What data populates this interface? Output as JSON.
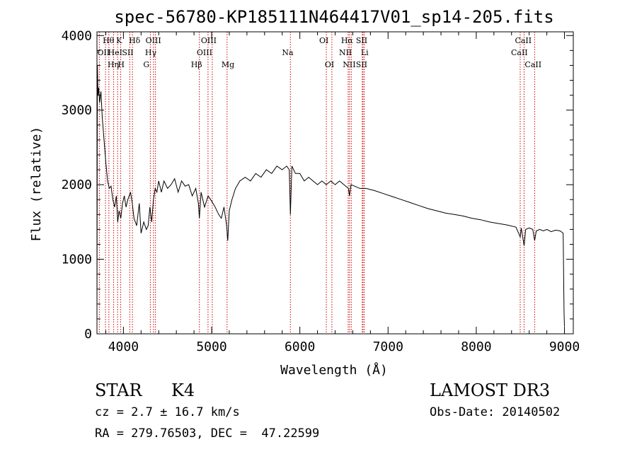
{
  "chart_data": {
    "type": "line",
    "title": "spec-56780-KP185111N464417V01_sp14-205.fits",
    "xlabel": "Wavelength (Å)",
    "ylabel": "Flux (relative)",
    "xlim": [
      3700,
      9100
    ],
    "ylim": [
      0,
      4050
    ],
    "xticks": [
      4000,
      5000,
      6000,
      7000,
      8000,
      9000
    ],
    "xtick_labels": [
      "4000",
      "5000",
      "6000",
      "7000",
      "8000",
      "9000"
    ],
    "yticks": [
      0,
      1000,
      2000,
      3000,
      4000
    ],
    "ytick_labels": [
      "0",
      "1000",
      "2000",
      "3000",
      "4000"
    ],
    "grid": false,
    "series": [
      {
        "name": "spectrum",
        "x": [
          3700,
          3705,
          3712,
          3720,
          3730,
          3745,
          3760,
          3780,
          3800,
          3820,
          3840,
          3860,
          3880,
          3900,
          3920,
          3935,
          3950,
          3970,
          3990,
          4010,
          4030,
          4050,
          4080,
          4100,
          4120,
          4150,
          4180,
          4200,
          4230,
          4260,
          4280,
          4300,
          4320,
          4340,
          4360,
          4380,
          4400,
          4430,
          4460,
          4500,
          4540,
          4580,
          4620,
          4660,
          4700,
          4740,
          4780,
          4820,
          4850,
          4861,
          4880,
          4920,
          4960,
          5000,
          5040,
          5080,
          5110,
          5140,
          5170,
          5183,
          5200,
          5230,
          5270,
          5320,
          5380,
          5440,
          5500,
          5560,
          5620,
          5680,
          5740,
          5800,
          5850,
          5880,
          5893,
          5910,
          5950,
          6000,
          6050,
          6100,
          6150,
          6200,
          6250,
          6300,
          6350,
          6400,
          6450,
          6500,
          6550,
          6563,
          6580,
          6620,
          6680,
          6750,
          6850,
          6950,
          7050,
          7150,
          7250,
          7350,
          7450,
          7550,
          7650,
          7750,
          7850,
          7950,
          8050,
          8150,
          8250,
          8350,
          8450,
          8498,
          8510,
          8542,
          8560,
          8600,
          8640,
          8662,
          8680,
          8720,
          8760,
          8800,
          8850,
          8900,
          8950,
          8985,
          8995,
          9000
        ],
        "y": [
          200,
          3600,
          3200,
          3300,
          3100,
          3250,
          2900,
          2600,
          2300,
          2050,
          1950,
          1980,
          1800,
          1700,
          1850,
          1500,
          1650,
          1550,
          1750,
          1850,
          1700,
          1800,
          1900,
          1750,
          1550,
          1450,
          1750,
          1350,
          1500,
          1400,
          1450,
          1700,
          1500,
          1800,
          1950,
          1900,
          2050,
          1900,
          2050,
          1950,
          2000,
          2080,
          1900,
          2050,
          1980,
          2000,
          1850,
          1950,
          1750,
          1550,
          1900,
          1700,
          1850,
          1780,
          1700,
          1600,
          1550,
          1700,
          1450,
          1250,
          1650,
          1800,
          1950,
          2050,
          2100,
          2050,
          2150,
          2100,
          2200,
          2150,
          2250,
          2200,
          2250,
          2200,
          1600,
          2250,
          2150,
          2150,
          2050,
          2100,
          2050,
          2000,
          2050,
          2000,
          2050,
          2000,
          2050,
          2000,
          1950,
          1850,
          2000,
          1980,
          1950,
          1950,
          1920,
          1880,
          1840,
          1800,
          1760,
          1720,
          1680,
          1650,
          1620,
          1600,
          1580,
          1550,
          1530,
          1500,
          1480,
          1460,
          1430,
          1300,
          1420,
          1180,
          1400,
          1420,
          1400,
          1250,
          1380,
          1400,
          1380,
          1400,
          1370,
          1390,
          1380,
          1350,
          300,
          100
        ]
      }
    ],
    "lines": [
      {
        "name": "OII",
        "x": 3727,
        "row": 1,
        "dx": -3
      },
      {
        "name": "Hθ",
        "x": 3797,
        "row": 0,
        "dx": -4
      },
      {
        "name": "Hη",
        "x": 3835,
        "row": 2,
        "dx": -2
      },
      {
        "name": "HeI",
        "x": 3889,
        "row": 1,
        "dx": -8
      },
      {
        "name": "K",
        "x": 3934,
        "row": 0,
        "dx": -2
      },
      {
        "name": "H",
        "x": 3968,
        "row": 2,
        "dx": -4
      },
      {
        "name": "SII",
        "x": 4072,
        "row": 1,
        "dx": -11
      },
      {
        "name": "Hδ",
        "x": 4102,
        "row": 0,
        "dx": -5
      },
      {
        "name": "G",
        "x": 4305,
        "row": 2,
        "dx": -10
      },
      {
        "name": "Hγ",
        "x": 4341,
        "row": 1,
        "dx": -12
      },
      {
        "name": "OIII",
        "x": 4363,
        "row": 0,
        "dx": -14
      },
      {
        "name": "Hβ",
        "x": 4861,
        "row": 2,
        "dx": -12
      },
      {
        "name": "OIII",
        "x": 4959,
        "row": 1,
        "dx": -16
      },
      {
        "name": "OIII",
        "x": 5007,
        "row": 0,
        "dx": -16
      },
      {
        "name": "Mg",
        "x": 5175,
        "row": 2,
        "dx": -8
      },
      {
        "name": "Na",
        "x": 5893,
        "row": 1,
        "dx": -12
      },
      {
        "name": "OI",
        "x": 6300,
        "row": 0,
        "dx": -10
      },
      {
        "name": "OI",
        "x": 6363,
        "row": 2,
        "dx": -10
      },
      {
        "name": "NII",
        "x": 6548,
        "row": 1,
        "dx": -13
      },
      {
        "name": "Hα",
        "x": 6563,
        "row": 0,
        "dx": -12
      },
      {
        "name": "NII",
        "x": 6583,
        "row": 2,
        "dx": -12
      },
      {
        "name": "Li",
        "x": 6708,
        "row": 1,
        "dx": -2
      },
      {
        "name": "SII",
        "x": 6716,
        "row": 0,
        "dx": -10
      },
      {
        "name": "SII",
        "x": 6731,
        "row": 2,
        "dx": -12
      },
      {
        "name": "CaII",
        "x": 8498,
        "row": 1,
        "dx": -13
      },
      {
        "name": "CaII",
        "x": 8542,
        "row": 0,
        "dx": -13
      },
      {
        "name": "CaII",
        "x": 8662,
        "row": 2,
        "dx": -14
      }
    ]
  },
  "info": {
    "object_class": "STAR",
    "subclass": "K4",
    "survey": "LAMOST DR3",
    "redshift": "cz = 2.7 ± 16.7 km/s",
    "obs_date": "Obs-Date: 20140502",
    "coords": "RA = 279.76503, DEC =  47.22599"
  }
}
